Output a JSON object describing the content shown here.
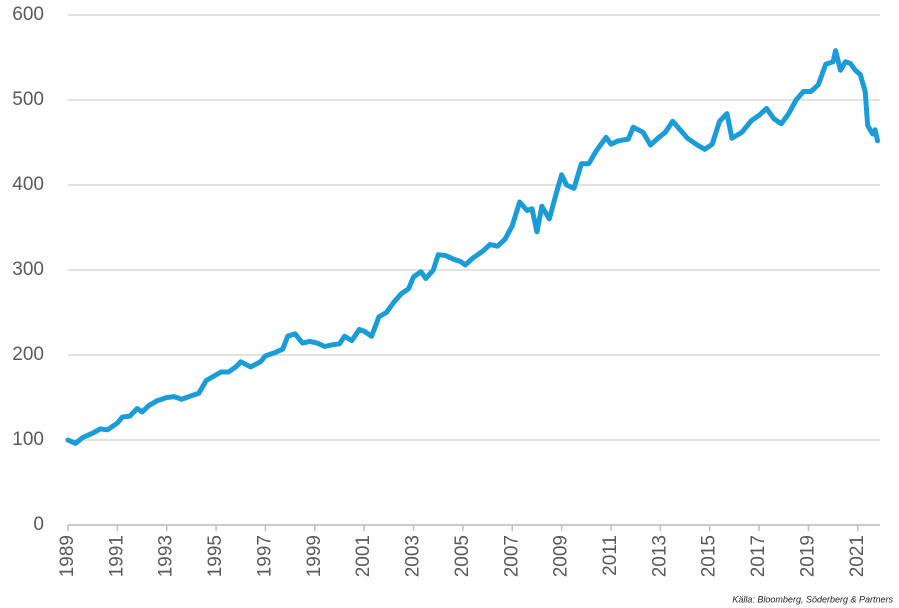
{
  "chart_data": {
    "type": "line",
    "source": "Källa: Bloomberg, Söderberg & Partners",
    "x": [
      1989.0,
      1989.3,
      1989.6,
      1990.0,
      1990.3,
      1990.6,
      1991.0,
      1991.2,
      1991.5,
      1991.8,
      1992.0,
      1992.3,
      1992.6,
      1993.0,
      1993.3,
      1993.6,
      1994.0,
      1994.3,
      1994.6,
      1994.9,
      1995.2,
      1995.5,
      1995.8,
      1996.0,
      1996.4,
      1996.8,
      1997.0,
      1997.4,
      1997.7,
      1997.9,
      1998.2,
      1998.5,
      1998.8,
      1999.1,
      1999.4,
      1999.7,
      2000.0,
      2000.2,
      2000.5,
      2000.8,
      2001.0,
      2001.3,
      2001.6,
      2001.9,
      2002.2,
      2002.5,
      2002.8,
      2003.0,
      2003.3,
      2003.5,
      2003.8,
      2004.0,
      2004.3,
      2004.6,
      2004.9,
      2005.1,
      2005.4,
      2005.8,
      2006.1,
      2006.4,
      2006.7,
      2007.0,
      2007.3,
      2007.6,
      2007.8,
      2008.0,
      2008.2,
      2008.5,
      2008.8,
      2009.0,
      2009.2,
      2009.5,
      2009.8,
      2010.1,
      2010.4,
      2010.8,
      2011.0,
      2011.3,
      2011.7,
      2011.9,
      2012.3,
      2012.6,
      2012.9,
      2013.2,
      2013.5,
      2013.8,
      2014.1,
      2014.5,
      2014.8,
      2015.1,
      2015.4,
      2015.7,
      2015.9,
      2016.3,
      2016.7,
      2017.0,
      2017.3,
      2017.6,
      2017.9,
      2018.2,
      2018.5,
      2018.8,
      2019.1,
      2019.4,
      2019.7,
      2020.0,
      2020.1,
      2020.3,
      2020.5,
      2020.7,
      2020.9,
      2021.1,
      2021.3,
      2021.4,
      2021.6,
      2021.7,
      2021.8
    ],
    "series": [
      {
        "name": "Index",
        "color": "#1a9cd8",
        "values": [
          100,
          96,
          103,
          108,
          113,
          112,
          120,
          127,
          128,
          137,
          133,
          141,
          146,
          150,
          151,
          148,
          152,
          155,
          170,
          175,
          180,
          180,
          186,
          192,
          186,
          192,
          199,
          203,
          207,
          222,
          225,
          214,
          216,
          214,
          210,
          212,
          213,
          222,
          217,
          230,
          228,
          222,
          245,
          250,
          262,
          272,
          278,
          292,
          298,
          290,
          300,
          318,
          317,
          313,
          310,
          306,
          314,
          322,
          330,
          328,
          336,
          352,
          380,
          370,
          372,
          345,
          375,
          360,
          392,
          412,
          400,
          396,
          425,
          425,
          440,
          456,
          448,
          452,
          454,
          468,
          462,
          447,
          455,
          462,
          475,
          465,
          455,
          447,
          442,
          448,
          475,
          484,
          455,
          462,
          476,
          482,
          490,
          478,
          472,
          484,
          500,
          510,
          510,
          518,
          542,
          545,
          558,
          535,
          545,
          543,
          535,
          530,
          510,
          470,
          460,
          465,
          452
        ]
      }
    ],
    "xlim": [
      1989,
      2021.9
    ],
    "xticks": [
      1989,
      1991,
      1993,
      1995,
      1997,
      1999,
      2001,
      2003,
      2005,
      2007,
      2009,
      2011,
      2013,
      2015,
      2017,
      2019,
      2021
    ],
    "ylim": [
      0,
      600
    ],
    "yticks": [
      0,
      100,
      200,
      300,
      400,
      500,
      600
    ],
    "grid": true
  }
}
